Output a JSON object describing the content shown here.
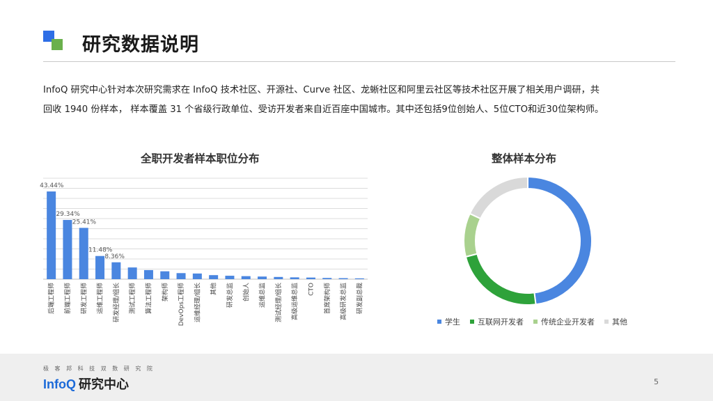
{
  "header": {
    "title": "研究数据说明"
  },
  "intro": {
    "line1": "InfoQ 研究中心针对本次研究需求在 InfoQ 技术社区、开源社、Curve 社区、龙蜥社区和阿里云社区等技术社区开展了相关用户调研，共",
    "line2": "回收 1940 份样本， 样本覆盖 31 个省级行政单位、受访开发者来自近百座中国城市。其中还包括9位创始人、5位CTO和近30位架构师。"
  },
  "chart_data": [
    {
      "type": "bar",
      "title": "全职开发者样本职位分布",
      "categories": [
        "后端工程师",
        "前端工程师",
        "研发工程师",
        "运维工程师",
        "研发经理/组长",
        "测试工程师",
        "算法工程师",
        "架构师",
        "DevOps工程师",
        "运维经理/组长",
        "其他",
        "研发总监",
        "创始人",
        "运维总监",
        "测试经理/组长",
        "高级运维总监",
        "CTO",
        "首席架构师",
        "高级研发总监",
        "研发副总裁"
      ],
      "values": [
        43.44,
        29.34,
        25.41,
        11.48,
        8.36,
        5.8,
        4.5,
        3.9,
        3.0,
        2.8,
        2.0,
        1.7,
        1.5,
        1.3,
        1.1,
        0.9,
        0.8,
        0.6,
        0.5,
        0.4
      ],
      "data_labels": [
        "43.44%",
        "29.34%",
        "25.41%",
        "11.48%",
        "8.36%",
        "",
        "",
        "",
        "",
        "",
        "",
        "",
        "",
        "",
        "",
        "",
        "",
        "",
        "",
        ""
      ],
      "ylim": [
        0,
        50
      ],
      "grid": true,
      "color": "#4a86e0"
    },
    {
      "type": "pie",
      "title": "整体样本分布",
      "style": "donut",
      "categories": [
        "学生",
        "互联网开发者",
        "传统企业开发者",
        "其他"
      ],
      "values": [
        48,
        23,
        11,
        18
      ],
      "colors": [
        "#4a86e0",
        "#2ea23a",
        "#a9d18e",
        "#d9d9d9"
      ],
      "legend": "bottom"
    }
  ],
  "footer": {
    "tagline": "极 客 邦 科 技 双 数 研 究 院",
    "brand": "InfoQ",
    "sub": "研究中心",
    "page_number": "5"
  }
}
